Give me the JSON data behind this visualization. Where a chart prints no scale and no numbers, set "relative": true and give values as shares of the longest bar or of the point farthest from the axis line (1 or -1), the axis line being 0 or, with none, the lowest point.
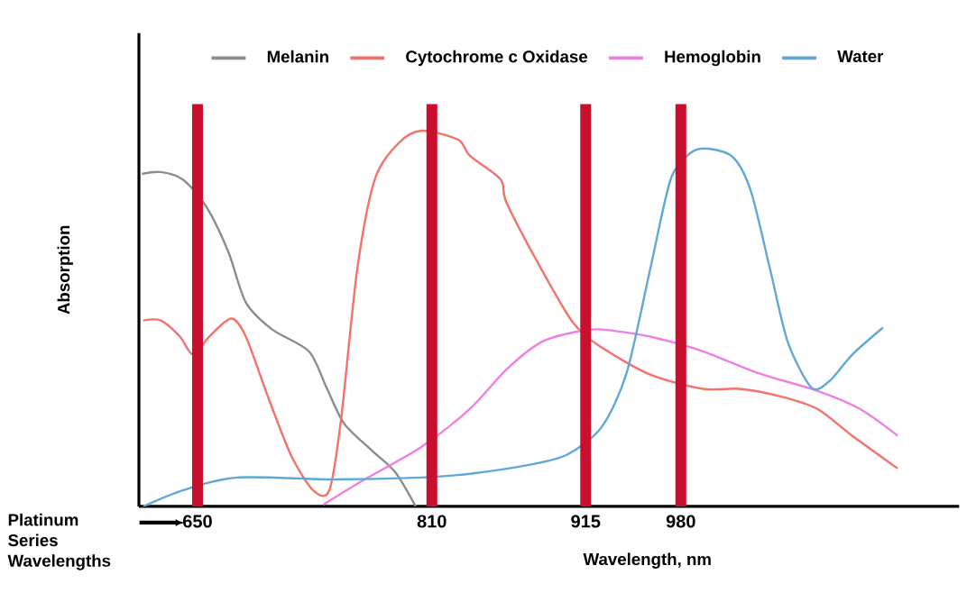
{
  "chart_data": {
    "type": "line",
    "relative": true,
    "xlabel": "Wavelength, nm",
    "ylabel": "Absorption",
    "xlim": [
      610,
      1170
    ],
    "xticks": [
      650,
      810,
      915,
      980
    ],
    "tick_labels": "x",
    "legend": "top",
    "grid": false,
    "marker": "none",
    "series": [
      {
        "name": "Melanin",
        "color": "#8c8c8c",
        "x": [
          612,
          625,
          640,
          656,
          671,
          683,
          701,
          726,
          738,
          750,
          769,
          785,
          799
        ],
        "values": [
          0.885,
          0.89,
          0.87,
          0.798,
          0.678,
          0.543,
          0.471,
          0.413,
          0.317,
          0.221,
          0.149,
          0.091,
          0.0
        ]
      },
      {
        "name": "Cytochrome c Oxidase",
        "color": "#f4726b",
        "x": [
          613,
          625,
          638,
          647,
          658,
          673,
          683,
          698,
          714,
          729,
          740,
          748,
          759,
          771,
          787,
          803,
          828,
          836,
          857,
          861,
          885,
          907,
          926,
          959,
          995,
          1020,
          1048,
          1073,
          1097,
          1128
        ],
        "values": [
          0.495,
          0.495,
          0.452,
          0.404,
          0.452,
          0.5,
          0.452,
          0.293,
          0.135,
          0.043,
          0.043,
          0.231,
          0.63,
          0.87,
          0.966,
          1.0,
          0.976,
          0.933,
          0.87,
          0.808,
          0.63,
          0.486,
          0.423,
          0.351,
          0.313,
          0.313,
          0.293,
          0.26,
          0.188,
          0.101
        ]
      },
      {
        "name": "Hemoglobin",
        "color": "#f07fe0",
        "x": [
          736,
          762,
          803,
          836,
          861,
          885,
          910,
          926,
          959,
          995,
          1032,
          1073,
          1102,
          1128
        ],
        "values": [
          0.005,
          0.067,
          0.159,
          0.26,
          0.365,
          0.438,
          0.466,
          0.471,
          0.452,
          0.413,
          0.356,
          0.308,
          0.26,
          0.188
        ]
      },
      {
        "name": "Water",
        "color": "#5fa8d8",
        "x": [
          613,
          640,
          677,
          742,
          803,
          836,
          877,
          903,
          926,
          943,
          959,
          973,
          987,
          999,
          1016,
          1028,
          1041,
          1053,
          1069,
          1081,
          1097,
          1118
        ],
        "values": [
          0.0,
          0.043,
          0.077,
          0.072,
          0.077,
          0.087,
          0.111,
          0.139,
          0.212,
          0.356,
          0.63,
          0.87,
          0.942,
          0.952,
          0.928,
          0.837,
          0.63,
          0.438,
          0.317,
          0.332,
          0.404,
          0.476
        ]
      }
    ],
    "ref_lines": [
      {
        "axis": "x",
        "value": 650,
        "color": "#c8102e"
      },
      {
        "axis": "x",
        "value": 810,
        "color": "#c8102e"
      },
      {
        "axis": "x",
        "value": 915,
        "color": "#c8102e"
      },
      {
        "axis": "x",
        "value": 980,
        "color": "#c8102e"
      }
    ],
    "annotations": [
      "Platinum Series Wavelengths"
    ]
  }
}
